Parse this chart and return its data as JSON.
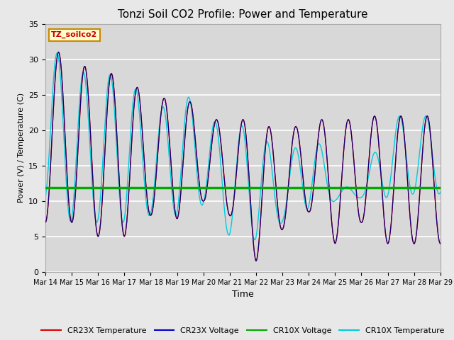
{
  "title": "Tonzi Soil CO2 Profile: Power and Temperature",
  "xlabel": "Time",
  "ylabel": "Power (V) / Temperature (C)",
  "ylim": [
    0,
    35
  ],
  "yticks": [
    0,
    5,
    10,
    15,
    20,
    25,
    30,
    35
  ],
  "xtick_labels": [
    "Mar 14",
    "Mar 15",
    "Mar 16",
    "Mar 17",
    "Mar 18",
    "Mar 19",
    "Mar 20",
    "Mar 21",
    "Mar 22",
    "Mar 23",
    "Mar 24",
    "Mar 25",
    "Mar 26",
    "Mar 27",
    "Mar 28",
    "Mar 29"
  ],
  "legend_entries": [
    "CR23X Temperature",
    "CR23X Voltage",
    "CR10X Voltage",
    "CR10X Temperature"
  ],
  "legend_colors": [
    "#dd0000",
    "#0000cc",
    "#00aa00",
    "#00cccc"
  ],
  "annotation_box_text": "TZ_soilco2",
  "annotation_box_color": "#ffffcc",
  "annotation_box_edge": "#cc8800",
  "annotation_text_color": "#cc0000",
  "cr10x_voltage_value": 11.9,
  "cr23x_voltage_value": 11.9,
  "fig_bg_color": "#e8e8e8",
  "plot_bg_color": "#d8d8d8",
  "grid_color": "#ffffff",
  "title_fontsize": 11
}
